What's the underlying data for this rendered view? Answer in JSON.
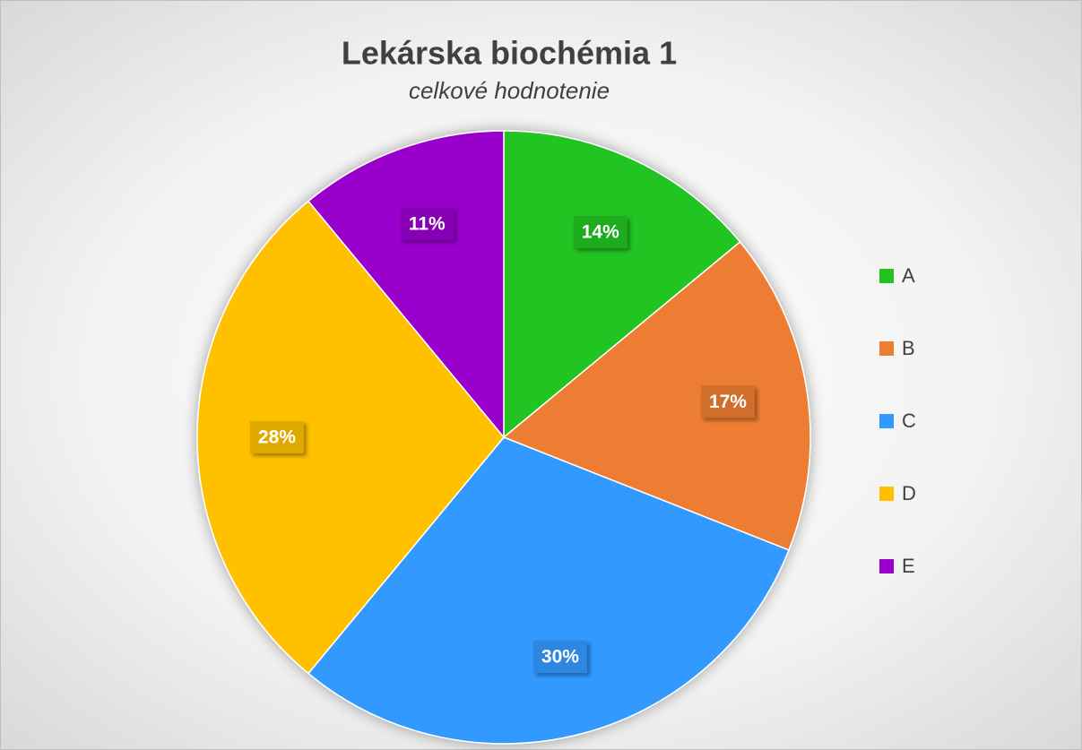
{
  "chart_data": {
    "type": "pie",
    "title": "Lekárska biochémia 1",
    "subtitle": "celkové hodnotenie",
    "categories": [
      "A",
      "B",
      "C",
      "D",
      "E"
    ],
    "values": [
      14,
      17,
      30,
      28,
      11
    ],
    "value_labels": [
      "14%",
      "17%",
      "30%",
      "28%",
      "11%"
    ],
    "colors": [
      "#22c422",
      "#ed7d31",
      "#3399ff",
      "#ffc000",
      "#9900cc"
    ],
    "legend": "right"
  }
}
